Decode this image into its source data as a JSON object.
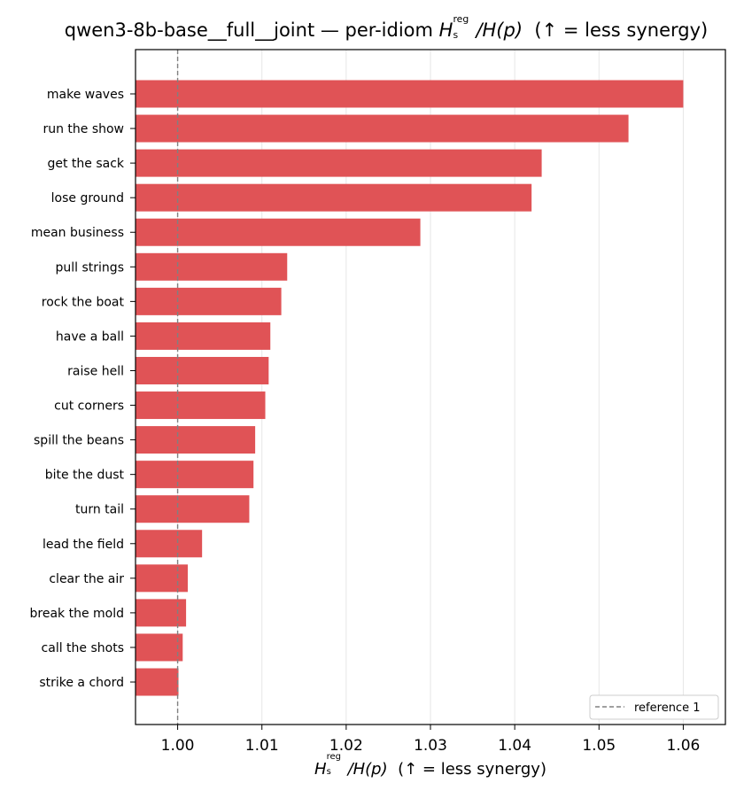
{
  "chart_data": {
    "type": "bar",
    "orientation": "horizontal",
    "title": {
      "prefix": "qwen3-8b-base__full__joint — per-idiom ",
      "math_main": "H",
      "math_sub": "s",
      "math_sup": "reg",
      "math_tail": "/H(p)",
      "suffix": "  (↑ = less synergy)"
    },
    "xlabel": {
      "math_main": "H",
      "math_sub": "s",
      "math_sup": "reg",
      "math_tail": "/H(p)",
      "suffix": "  (↑ = less synergy)"
    },
    "categories": [
      "make waves",
      "run the show",
      "get the sack",
      "lose ground",
      "mean business",
      "pull strings",
      "rock the boat",
      "have a ball",
      "raise hell",
      "cut corners",
      "spill the beans",
      "bite the dust",
      "turn tail",
      "lead the field",
      "clear the air",
      "break the mold",
      "call the shots",
      "strike a chord"
    ],
    "values": [
      1.06,
      1.0535,
      1.0432,
      1.042,
      1.0288,
      1.013,
      1.0123,
      1.011,
      1.0108,
      1.0104,
      1.0092,
      1.009,
      1.0085,
      1.0029,
      1.0012,
      1.001,
      1.0006,
      1.0001
    ],
    "xlim": [
      0.995,
      1.065
    ],
    "xticks": [
      1.0,
      1.01,
      1.02,
      1.03,
      1.04,
      1.05,
      1.06
    ],
    "xtick_labels": [
      "1.00",
      "1.01",
      "1.02",
      "1.03",
      "1.04",
      "1.05",
      "1.06"
    ],
    "grid": "x",
    "reference_line": {
      "value": 1.0,
      "label": "reference 1",
      "style": "dashed"
    },
    "legend_placement": "bottom-right",
    "colors": {
      "bar": "#e05356",
      "reference": "#808080",
      "grid": "#e6e6e6",
      "axis": "#000000"
    }
  }
}
